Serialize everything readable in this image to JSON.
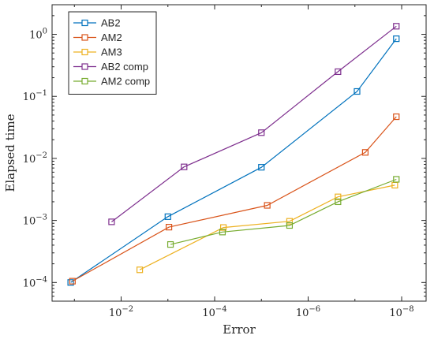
{
  "chart_data": {
    "type": "line",
    "xscale": "log",
    "yscale": "log",
    "x_reversed": true,
    "xlim": [
      0.3,
      3e-09
    ],
    "ylim": [
      5e-05,
      3
    ],
    "xlabel": "Error",
    "ylabel": "Elapsed time",
    "x_ticks": [
      {
        "value": 0.01,
        "base": "10",
        "exp": "−2"
      },
      {
        "value": 0.0001,
        "base": "10",
        "exp": "−4"
      },
      {
        "value": 1e-06,
        "base": "10",
        "exp": "−6"
      },
      {
        "value": 1e-08,
        "base": "10",
        "exp": "−8"
      }
    ],
    "y_ticks": [
      {
        "value": 0.0001,
        "base": "10",
        "exp": "−4"
      },
      {
        "value": 0.001,
        "base": "10",
        "exp": "−3"
      },
      {
        "value": 0.01,
        "base": "10",
        "exp": "−2"
      },
      {
        "value": 0.1,
        "base": "10",
        "exp": "−1"
      },
      {
        "value": 1,
        "base": "10",
        "exp": "0"
      }
    ],
    "grid": false,
    "legend_position": "top-left",
    "series": [
      {
        "name": "AB2",
        "color": "#0072BD",
        "points": [
          [
            0.12,
            0.0001
          ],
          [
            0.001,
            0.00115
          ],
          [
            1e-05,
            0.0072
          ],
          [
            9e-08,
            0.12
          ],
          [
            1.3e-08,
            0.85
          ]
        ]
      },
      {
        "name": "AM2",
        "color": "#D95319",
        "points": [
          [
            0.11,
            0.000105
          ],
          [
            0.00095,
            0.00078
          ],
          [
            7.5e-06,
            0.00175
          ],
          [
            6e-08,
            0.0125
          ],
          [
            1.3e-08,
            0.047
          ]
        ]
      },
      {
        "name": "AM3",
        "color": "#EDB120",
        "points": [
          [
            0.004,
            0.00016
          ],
          [
            6.5e-05,
            0.00077
          ],
          [
            2.5e-06,
            0.00097
          ],
          [
            2.3e-07,
            0.0024
          ],
          [
            1.4e-08,
            0.0037
          ]
        ]
      },
      {
        "name": "AB2 comp",
        "color": "#7E2F8E",
        "points": [
          [
            0.016,
            0.00095
          ],
          [
            0.00045,
            0.0073
          ],
          [
            1e-05,
            0.026
          ],
          [
            2.3e-07,
            0.25
          ],
          [
            1.3e-08,
            1.35
          ]
        ]
      },
      {
        "name": "AM2 comp",
        "color": "#77AC30",
        "points": [
          [
            0.00088,
            0.00041
          ],
          [
            6.8e-05,
            0.00065
          ],
          [
            2.5e-06,
            0.00083
          ],
          [
            2.3e-07,
            0.002
          ],
          [
            1.3e-08,
            0.0046
          ]
        ]
      }
    ]
  }
}
